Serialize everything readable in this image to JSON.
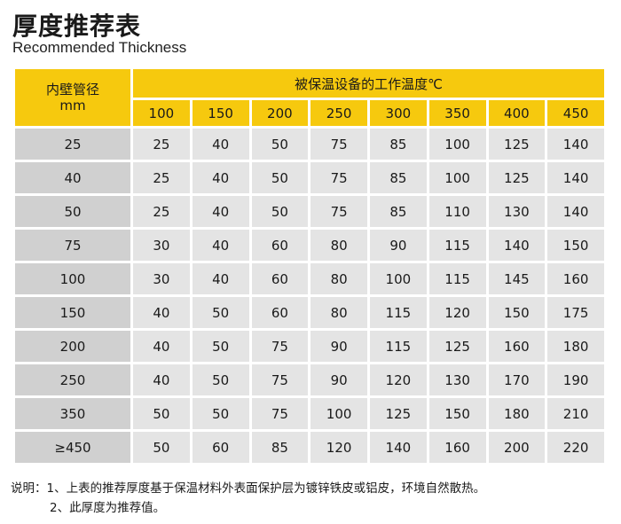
{
  "title_cn": "厚度推荐表",
  "title_en": "Recommended Thickness",
  "table": {
    "corner_line1": "内壁管径",
    "corner_line2": "mm",
    "top_header": "被保温设备的工作温度℃",
    "temperatures": [
      "100",
      "150",
      "200",
      "250",
      "300",
      "350",
      "400",
      "450"
    ],
    "rows": [
      {
        "diameter": "25",
        "values": [
          "25",
          "40",
          "50",
          "75",
          "85",
          "100",
          "125",
          "140"
        ]
      },
      {
        "diameter": "40",
        "values": [
          "25",
          "40",
          "50",
          "75",
          "85",
          "100",
          "125",
          "140"
        ]
      },
      {
        "diameter": "50",
        "values": [
          "25",
          "40",
          "50",
          "75",
          "85",
          "110",
          "130",
          "140"
        ]
      },
      {
        "diameter": "75",
        "values": [
          "30",
          "40",
          "60",
          "80",
          "90",
          "115",
          "140",
          "150"
        ]
      },
      {
        "diameter": "100",
        "values": [
          "30",
          "40",
          "60",
          "80",
          "100",
          "115",
          "145",
          "160"
        ]
      },
      {
        "diameter": "150",
        "values": [
          "40",
          "50",
          "60",
          "80",
          "115",
          "120",
          "150",
          "175"
        ]
      },
      {
        "diameter": "200",
        "values": [
          "40",
          "50",
          "75",
          "90",
          "115",
          "125",
          "160",
          "180"
        ]
      },
      {
        "diameter": "250",
        "values": [
          "40",
          "50",
          "75",
          "90",
          "120",
          "130",
          "170",
          "190"
        ]
      },
      {
        "diameter": "350",
        "values": [
          "50",
          "50",
          "75",
          "100",
          "125",
          "150",
          "180",
          "210"
        ]
      },
      {
        "diameter": "≥450",
        "values": [
          "50",
          "60",
          "85",
          "120",
          "140",
          "160",
          "200",
          "220"
        ]
      }
    ]
  },
  "notes": {
    "line1": "说明：1、上表的推荐厚度基于保温材料外表面保护层为镀锌铁皮或铝皮，环境自然散热。",
    "line2": "2、此厚度为推荐值。"
  },
  "colors": {
    "header_yellow": "#f6c90e",
    "left_column_gray": "#d0d0d0",
    "cell_gray": "#e4e4e4"
  }
}
